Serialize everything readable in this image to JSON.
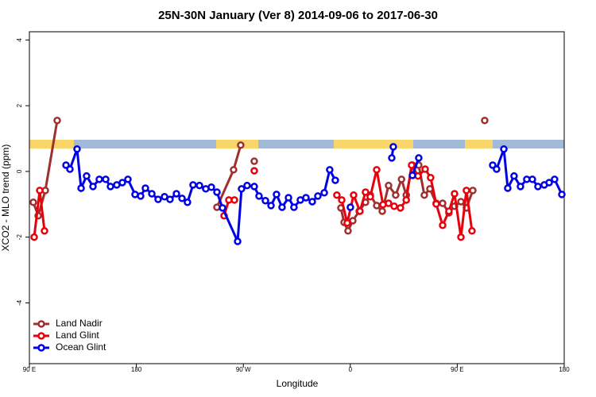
{
  "chart_data": {
    "type": "line",
    "title": "25N-30N January (Ver 8)   2014-09-06 to 2017-06-30",
    "x_label": "Longitude",
    "y_label": "XCO2 - MLO trend (ppm)",
    "xlim": [
      90,
      540
    ],
    "ylim": [
      -5.85,
      4.25
    ],
    "xticks": [
      {
        "value": 90,
        "label": "90 E"
      },
      180,
      {
        "value": 270,
        "label": "90 W"
      },
      {
        "value": 360,
        "label": "0"
      },
      {
        "value": 450,
        "label": "90 E"
      },
      {
        "value": 540,
        "label": "180"
      }
    ],
    "yticks": [
      -4,
      -2,
      0,
      2,
      4
    ],
    "legend": "bottom-left",
    "series": [
      {
        "name": "Land Nadir",
        "color": "#a0302f",
        "x": [
          93.3,
          97.4,
          103.4,
          113.4,
          null,
          247.8,
          261.8,
          267.8,
          null,
          279.2,
          null,
          352.1,
          354.8,
          358.1,
          362.1,
          367.5,
          372.8,
          376.8,
          382.2,
          386.9,
          392.2,
          398.2,
          403.1,
          407.1,
          412.3,
          417.6,
          422.3,
          427.0,
          432.3,
          437.7,
          443.0,
          447.7,
          453.1,
          457.7,
          463.1,
          null,
          473.1
        ],
        "values": [
          -0.94,
          -1.35,
          -0.58,
          1.55,
          null,
          -1.09,
          0.05,
          0.8,
          null,
          0.31,
          null,
          -1.11,
          -1.55,
          -1.81,
          -1.5,
          -1.21,
          -0.94,
          -0.72,
          -1.04,
          -1.21,
          -0.43,
          -0.72,
          -0.24,
          -0.72,
          0.19,
          0.19,
          -0.72,
          -0.53,
          -0.97,
          -0.97,
          -1.26,
          -1.06,
          -0.92,
          -1.11,
          -0.58,
          null,
          1.55
        ]
      },
      {
        "name": "Land Glint",
        "color": "#e8000b",
        "x": [
          94.0,
          98.7,
          102.7,
          null,
          253.8,
          257.8,
          262.5,
          null,
          279.2,
          null,
          348.7,
          352.8,
          357.4,
          362.8,
          368.1,
          372.8,
          376.8,
          382.2,
          387.5,
          392.2,
          396.9,
          402.2,
          407.1,
          411.6,
          417.0,
          423.0,
          427.6,
          432.3,
          437.7,
          443.0,
          447.7,
          453.1,
          457.7,
          462.4
        ],
        "values": [
          -2.0,
          -0.58,
          -1.81,
          null,
          -1.35,
          -0.87,
          -0.87,
          null,
          0.02,
          null,
          -0.72,
          -0.87,
          -1.57,
          -0.72,
          -1.21,
          -0.63,
          -0.77,
          0.05,
          -1.01,
          -0.97,
          -1.06,
          -1.11,
          -0.87,
          0.19,
          -0.14,
          0.07,
          -0.19,
          -0.99,
          -1.64,
          -1.21,
          -0.68,
          -2.0,
          -0.58,
          -1.81
        ]
      },
      {
        "name": "Ocean Glint",
        "color": "#0000e6",
        "x": [
          120.8,
          124.1,
          130.1,
          133.5,
          138.1,
          143.5,
          148.8,
          154.2,
          158.2,
          163.5,
          168.2,
          172.9,
          178.9,
          183.6,
          187.6,
          193.0,
          198.3,
          203.7,
          208.3,
          213.7,
          218.4,
          223.0,
          227.7,
          233.1,
          238.4,
          243.1,
          247.8,
          252.5,
          265.2,
          268.5,
          273.2,
          279.2,
          283.2,
          288.6,
          293.3,
          297.9,
          302.6,
          308.0,
          312.6,
          318.0,
          322.7,
          328.0,
          332.7,
          338.1,
          342.7,
          347.4,
          null,
          360.1,
          null,
          394.9,
          396.2,
          null,
          412.3,
          417.6,
          null,
          479.8,
          483.1,
          489.2,
          492.5,
          497.8,
          503.2,
          508.5,
          513.2,
          517.9,
          523.2,
          527.3,
          531.9,
          538.0
        ],
        "values": [
          0.19,
          0.07,
          0.68,
          -0.51,
          -0.14,
          -0.46,
          -0.24,
          -0.24,
          -0.46,
          -0.41,
          -0.34,
          -0.24,
          -0.7,
          -0.75,
          -0.51,
          -0.68,
          -0.85,
          -0.77,
          -0.85,
          -0.68,
          -0.82,
          -0.94,
          -0.41,
          -0.43,
          -0.53,
          -0.48,
          -0.63,
          -1.11,
          -2.13,
          -0.53,
          -0.43,
          -0.46,
          -0.75,
          -0.89,
          -1.04,
          -0.7,
          -1.09,
          -0.8,
          -1.09,
          -0.87,
          -0.8,
          -0.92,
          -0.75,
          -0.65,
          0.05,
          -0.27,
          null,
          -1.09,
          null,
          0.41,
          0.75,
          null,
          -0.12,
          0.41,
          null,
          0.19,
          0.07,
          0.68,
          -0.51,
          -0.14,
          -0.46,
          -0.24,
          -0.24,
          -0.46,
          -0.41,
          -0.34,
          -0.24,
          -0.7
        ]
      }
    ]
  }
}
